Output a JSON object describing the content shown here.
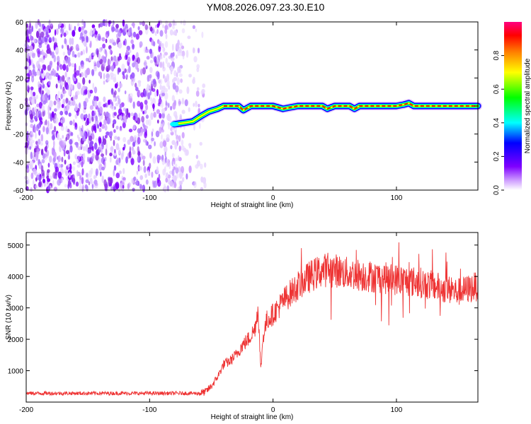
{
  "title": "YM08.2026.097.23.30.E10",
  "chart_data": [
    {
      "type": "heatmap",
      "name": "spectrogram",
      "xlabel": "Height of straight line (km)",
      "ylabel": "Frequency (Hz)",
      "xlim": [
        -200,
        166
      ],
      "ylim": [
        -60,
        60
      ],
      "x_ticks": [
        -200,
        -100,
        0,
        100
      ],
      "y_ticks": [
        -60,
        -40,
        -20,
        0,
        20,
        40,
        60
      ],
      "x_tick_labels": [
        "-200",
        "-100",
        "0",
        "100"
      ],
      "y_tick_labels": [
        "-60",
        "-40",
        "-20",
        "0",
        "20",
        "40",
        "60"
      ],
      "noise_region_x": [
        -200,
        -55
      ],
      "carrier_track": {
        "x": [
          -80,
          -72,
          -65,
          -58,
          -52,
          -45,
          -40,
          -35,
          -28,
          -24,
          -18,
          -10,
          0,
          8,
          20,
          40,
          44,
          50,
          62,
          66,
          70,
          80,
          100,
          106,
          110,
          114,
          120,
          140,
          166
        ],
        "y": [
          -13,
          -12,
          -11,
          -7,
          -4,
          -2,
          0,
          0,
          0,
          -3,
          0,
          0,
          0,
          -2,
          0,
          0,
          -2,
          0,
          0,
          -2,
          0,
          0,
          0,
          1,
          2,
          0,
          0,
          0,
          0
        ]
      },
      "colorbar": {
        "label": "Normalized spectral amplitude",
        "range": [
          0,
          1
        ],
        "ticks": [
          0.0,
          0.2,
          0.4,
          0.6,
          0.8
        ],
        "tick_labels": [
          "0.0",
          "0.2",
          "0.4",
          "0.6",
          "0.8"
        ],
        "colors": [
          "#ffffff",
          "#cc99ff",
          "#7f00ff",
          "#0000ff",
          "#00ffff",
          "#00ff00",
          "#ffff00",
          "#ff8000",
          "#ff0000",
          "#ff007f"
        ]
      }
    },
    {
      "type": "line",
      "name": "snr",
      "xlabel": "Height of straight line (km)",
      "ylabel": "SNR (10 * v/v)",
      "xlim": [
        -200,
        166
      ],
      "ylim": [
        0,
        5400
      ],
      "x_ticks": [
        -200,
        -100,
        0,
        100
      ],
      "y_ticks": [
        1000,
        2000,
        3000,
        4000,
        5000
      ],
      "x_tick_labels": [
        "-200",
        "-100",
        "0",
        "100"
      ],
      "y_tick_labels": [
        "1000",
        "2000",
        "3000",
        "4000",
        "5000"
      ],
      "color": "#ee3333",
      "series": [
        {
          "name": "SNR envelope",
          "x": [
            -200,
            -60,
            -55,
            -50,
            -45,
            -40,
            -35,
            -30,
            -25,
            -20,
            -15,
            -12,
            -10,
            -8,
            -5,
            0,
            10,
            20,
            30,
            40,
            50,
            60,
            80,
            100,
            120,
            140,
            150,
            166
          ],
          "y": [
            280,
            280,
            320,
            500,
            800,
            1200,
            1300,
            1500,
            1800,
            2000,
            2300,
            3000,
            1000,
            2100,
            2600,
            2800,
            3300,
            3700,
            4000,
            4200,
            4200,
            4100,
            4000,
            3900,
            3800,
            3600,
            3500,
            3700
          ]
        }
      ]
    }
  ]
}
